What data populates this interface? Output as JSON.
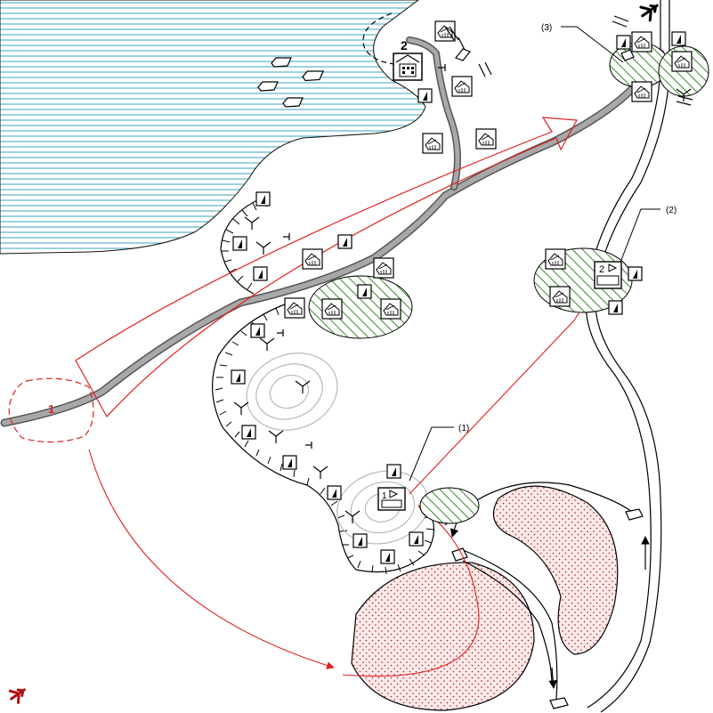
{
  "labels": {
    "ref_1": "(1)",
    "ref_2": "(2)",
    "ref_3": "(3)",
    "point_1": "1",
    "point_2": "2",
    "box_1": "1",
    "box_2": "2"
  },
  "icons": {
    "house": "house-icon",
    "flag": "flag-icon",
    "tree": "tree-icon",
    "aircraft": "aircraft-icon",
    "boat": "boat-icon",
    "station": "station-icon"
  },
  "colors": {
    "water_lines": "#3aa6b9",
    "route_red": "#e02020",
    "road_gray": "#a8a8a8",
    "green_zone": "#3a8a2a",
    "dotted_zone": "#a02020"
  }
}
